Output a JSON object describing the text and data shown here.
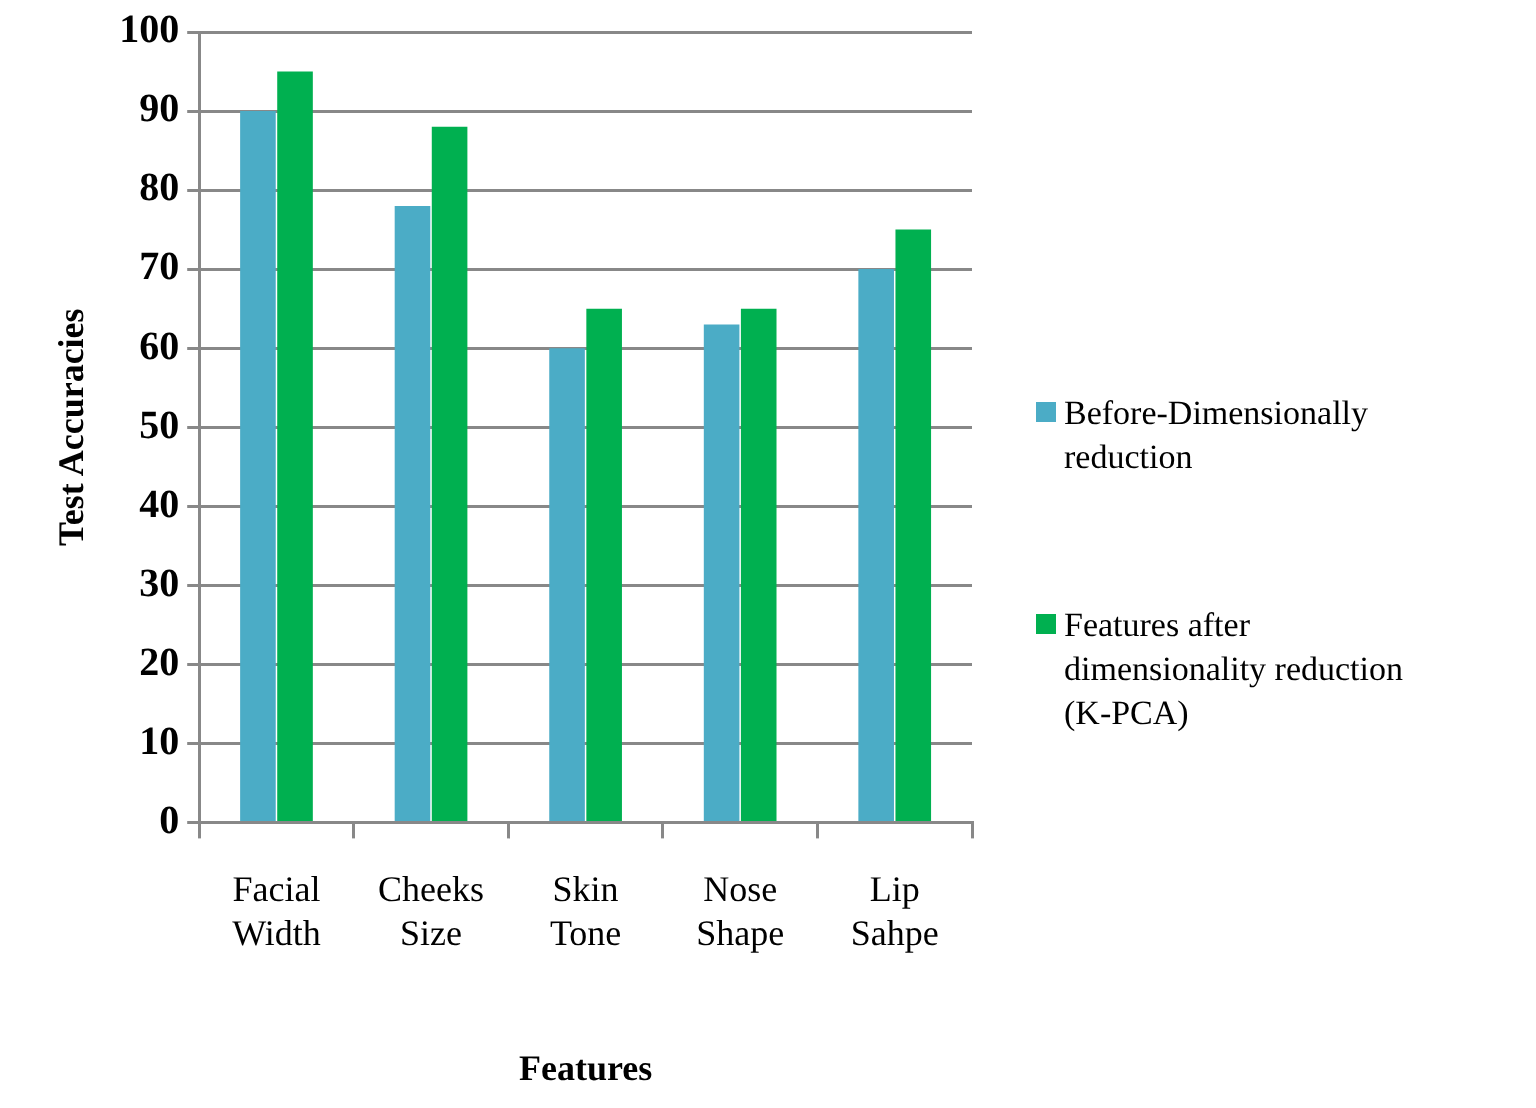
{
  "chart_data": {
    "type": "bar",
    "xlabel": "Features",
    "ylabel": "Test Accuracies",
    "categories": [
      "Facial Width",
      "Cheeks Size",
      "Skin Tone",
      "Nose Shape",
      "Lip Sahpe"
    ],
    "series": [
      {
        "name": "Before-Dimensionally reduction",
        "color": "#4bacc6",
        "values": [
          90,
          78,
          60,
          63,
          70
        ]
      },
      {
        "name": "Features after dimensionality reduction (K-PCA)",
        "color": "#00b050",
        "values": [
          95,
          88,
          65,
          65,
          75
        ]
      }
    ],
    "ylim": [
      0,
      100
    ],
    "yticks": [
      0,
      10,
      20,
      30,
      40,
      50,
      60,
      70,
      80,
      90,
      100
    ],
    "grid": "y",
    "legend": "right"
  }
}
